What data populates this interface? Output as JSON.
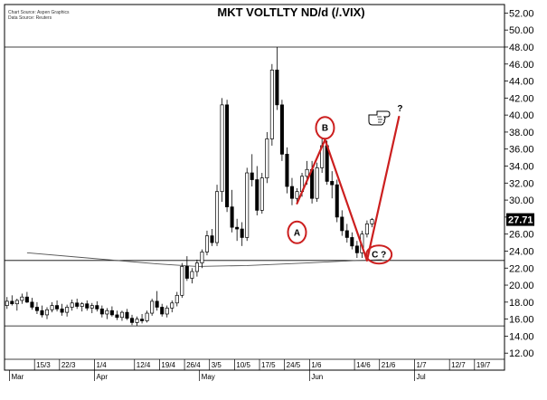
{
  "chart_data": {
    "type": "candlestick",
    "title": "MKT VOLTLTY ND/d (/.VIX)",
    "source_lines": [
      "Chart Source: Aspen Graphics",
      "Data Source: Reuters"
    ],
    "ylim": [
      10,
      53
    ],
    "y_ticks": [
      12,
      14,
      16,
      18,
      20,
      22,
      24,
      26,
      28,
      30,
      32,
      34,
      36,
      38,
      40,
      42,
      44,
      46,
      48,
      50,
      52
    ],
    "y_tick_labels": [
      "12.00",
      "14.00",
      "16.00",
      "18.00",
      "20.00",
      "22.00",
      "24.00",
      "26.00",
      "28.00",
      "30.00",
      "32.00",
      "34.00",
      "36.00",
      "38.00",
      "40.00",
      "42.00",
      "44.00",
      "46.00",
      "48.00",
      "50.00",
      "52.00"
    ],
    "x_ticks": [
      {
        "label": "15/3",
        "i": 6
      },
      {
        "label": "22/3",
        "i": 11
      },
      {
        "label": "1/4",
        "i": 18
      },
      {
        "label": "12/4",
        "i": 26
      },
      {
        "label": "19/4",
        "i": 31
      },
      {
        "label": "26/4",
        "i": 36
      },
      {
        "label": "3/5",
        "i": 41
      },
      {
        "label": "10/5",
        "i": 46
      },
      {
        "label": "17/5",
        "i": 51
      },
      {
        "label": "24/5",
        "i": 56
      },
      {
        "label": "1/6",
        "i": 61
      },
      {
        "label": "14/6",
        "i": 70
      },
      {
        "label": "21/6",
        "i": 75
      },
      {
        "label": "1/7",
        "i": 82
      },
      {
        "label": "12/7",
        "i": 89
      },
      {
        "label": "19/7",
        "i": 94
      }
    ],
    "month_labels": [
      {
        "label": "Mar",
        "i": 1
      },
      {
        "label": "Apr",
        "i": 18
      },
      {
        "label": "May",
        "i": 39
      },
      {
        "label": "Jun",
        "i": 61
      },
      {
        "label": "Jul",
        "i": 82
      }
    ],
    "total_slots": 100,
    "candles": [
      [
        17.6,
        18.6,
        17.2,
        18.1
      ],
      [
        18.1,
        18.8,
        17.6,
        17.8
      ],
      [
        17.8,
        18.4,
        17.0,
        18.2
      ],
      [
        18.2,
        19.0,
        17.8,
        18.6
      ],
      [
        18.6,
        19.2,
        17.9,
        18.0
      ],
      [
        18.0,
        18.5,
        17.1,
        17.4
      ],
      [
        17.4,
        18.0,
        16.6,
        17.0
      ],
      [
        17.0,
        17.6,
        16.2,
        16.5
      ],
      [
        16.5,
        17.4,
        16.0,
        17.1
      ],
      [
        17.1,
        18.0,
        16.8,
        17.6
      ],
      [
        17.6,
        18.2,
        16.9,
        17.2
      ],
      [
        17.2,
        17.8,
        16.4,
        16.8
      ],
      [
        16.8,
        17.7,
        16.3,
        17.4
      ],
      [
        17.4,
        18.3,
        17.0,
        17.9
      ],
      [
        17.9,
        18.4,
        17.2,
        17.5
      ],
      [
        17.5,
        18.0,
        16.9,
        17.8
      ],
      [
        17.8,
        18.2,
        17.0,
        17.3
      ],
      [
        17.3,
        17.9,
        16.7,
        17.6
      ],
      [
        17.6,
        18.1,
        16.9,
        17.2
      ],
      [
        17.2,
        17.6,
        16.2,
        16.6
      ],
      [
        16.6,
        17.3,
        16.0,
        17.0
      ],
      [
        17.0,
        17.5,
        16.3,
        16.5
      ],
      [
        16.5,
        17.0,
        15.9,
        16.2
      ],
      [
        16.2,
        17.0,
        15.8,
        16.8
      ],
      [
        16.8,
        17.2,
        15.9,
        16.1
      ],
      [
        16.1,
        16.5,
        15.3,
        15.6
      ],
      [
        15.6,
        16.3,
        15.2,
        16.0
      ],
      [
        16.0,
        16.6,
        15.5,
        15.8
      ],
      [
        15.8,
        17.0,
        15.6,
        16.7
      ],
      [
        16.7,
        18.4,
        16.4,
        18.1
      ],
      [
        18.1,
        19.3,
        17.0,
        17.4
      ],
      [
        17.4,
        17.8,
        16.3,
        16.6
      ],
      [
        16.6,
        17.6,
        16.2,
        17.3
      ],
      [
        17.3,
        18.2,
        16.8,
        17.9
      ],
      [
        17.9,
        19.2,
        17.5,
        18.8
      ],
      [
        18.8,
        22.6,
        18.5,
        22.2
      ],
      [
        22.2,
        23.4,
        20.5,
        20.8
      ],
      [
        20.8,
        22.0,
        20.2,
        21.6
      ],
      [
        21.6,
        23.0,
        21.0,
        22.6
      ],
      [
        22.6,
        24.2,
        22.0,
        23.9
      ],
      [
        23.9,
        26.4,
        23.5,
        25.8
      ],
      [
        25.8,
        26.6,
        24.6,
        25.0
      ],
      [
        25.0,
        31.8,
        24.6,
        31.0
      ],
      [
        31.0,
        42.0,
        29.8,
        41.2
      ],
      [
        41.2,
        41.8,
        28.6,
        29.2
      ],
      [
        29.2,
        31.2,
        26.2,
        26.8
      ],
      [
        26.8,
        27.8,
        25.2,
        26.6
      ],
      [
        26.6,
        27.4,
        24.6,
        25.6
      ],
      [
        25.6,
        33.8,
        25.2,
        33.2
      ],
      [
        33.2,
        35.4,
        31.6,
        32.4
      ],
      [
        32.4,
        34.0,
        28.2,
        28.8
      ],
      [
        28.8,
        33.2,
        28.4,
        32.6
      ],
      [
        32.6,
        38.0,
        32.0,
        37.2
      ],
      [
        37.2,
        46.0,
        36.4,
        45.3
      ],
      [
        45.3,
        48.0,
        40.6,
        41.2
      ],
      [
        41.2,
        41.8,
        34.6,
        35.4
      ],
      [
        35.4,
        36.2,
        30.8,
        31.6
      ],
      [
        31.6,
        32.6,
        29.4,
        30.2
      ],
      [
        30.2,
        31.4,
        29.6,
        31.0
      ],
      [
        31.0,
        33.2,
        30.4,
        32.8
      ],
      [
        32.8,
        34.6,
        31.8,
        33.6
      ],
      [
        33.6,
        34.6,
        29.6,
        30.2
      ],
      [
        30.2,
        34.4,
        29.8,
        33.8
      ],
      [
        33.8,
        37.2,
        33.2,
        36.4
      ],
      [
        36.4,
        37.0,
        31.8,
        32.2
      ],
      [
        32.2,
        33.4,
        30.2,
        31.8
      ],
      [
        31.8,
        32.4,
        27.4,
        28.0
      ],
      [
        28.0,
        28.8,
        25.8,
        26.4
      ],
      [
        26.4,
        27.2,
        25.0,
        25.6
      ],
      [
        25.6,
        26.2,
        24.2,
        24.6
      ],
      [
        24.6,
        25.2,
        23.2,
        23.8
      ],
      [
        23.8,
        26.4,
        23.2,
        26.0
      ],
      [
        26.0,
        27.6,
        25.6,
        27.2
      ],
      [
        27.2,
        27.9,
        26.8,
        27.71
      ]
    ],
    "last_value": "27.71",
    "moving_average": [
      {
        "i": 4,
        "v": 23.8
      },
      {
        "i": 16,
        "v": 23.2
      },
      {
        "i": 30,
        "v": 22.5
      },
      {
        "i": 38,
        "v": 22.2
      },
      {
        "i": 48,
        "v": 22.3
      },
      {
        "i": 60,
        "v": 22.6
      },
      {
        "i": 70,
        "v": 22.9
      },
      {
        "i": 75,
        "v": 23.0
      }
    ],
    "horizontal_lines": [
      48.0,
      22.9,
      15.2
    ],
    "pattern_lines": [
      {
        "from": {
          "i": 58.0,
          "v": 29.6
        },
        "to": {
          "i": 63.6,
          "v": 37.1
        }
      },
      {
        "from": {
          "i": 63.6,
          "v": 37.1
        },
        "to": {
          "i": 72.0,
          "v": 22.9
        }
      },
      {
        "from": {
          "i": 72.0,
          "v": 22.9
        },
        "to": {
          "i": 78.4,
          "v": 39.8
        }
      }
    ],
    "annotations": [
      {
        "label": "A",
        "i": 58.0,
        "v": 26.2,
        "text_dx": 0
      },
      {
        "label": "B",
        "i": 63.6,
        "v": 38.5,
        "text_dx": 0
      },
      {
        "label": "C ?",
        "i": 74.4,
        "v": 23.6,
        "text_dx": 0
      },
      {
        "label": "?",
        "i": 78.6,
        "v": 40.8,
        "text_dx": 0
      }
    ],
    "hand_icon": "pointing-hand-icon",
    "colors": {
      "pattern": "#cc1f1f",
      "ma": "#555555",
      "bull": "#ffffff",
      "bear": "#000000"
    }
  }
}
